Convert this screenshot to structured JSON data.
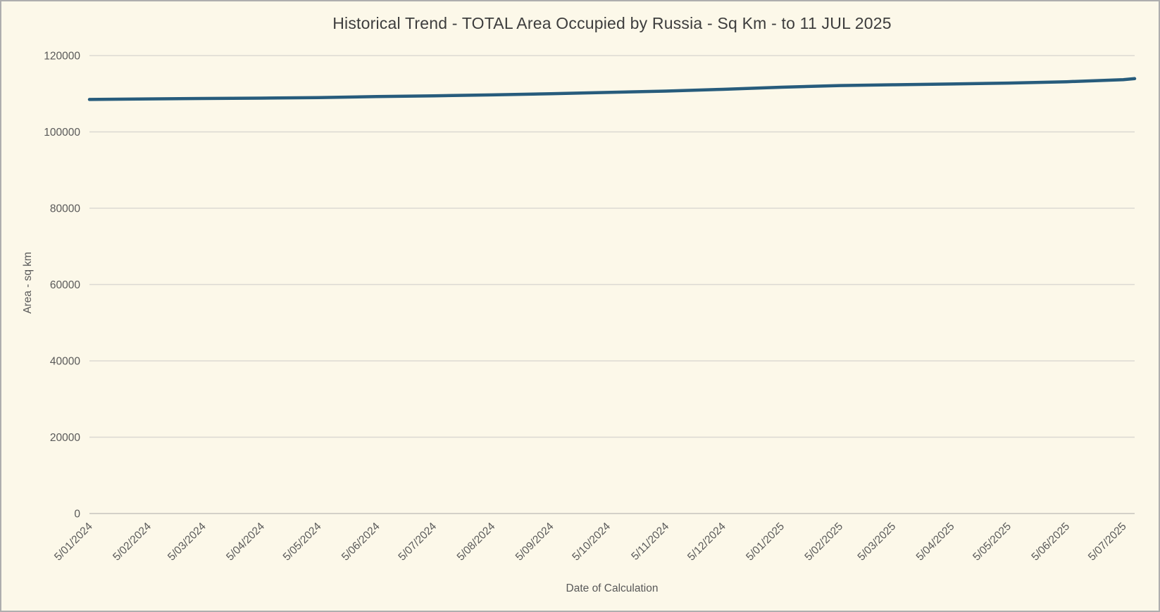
{
  "window": {
    "background_color": "#fcf8e9",
    "border_color": "#aeaeae"
  },
  "chart_data": {
    "type": "line",
    "title": "Historical Trend - TOTAL Area Occupied by Russia - Sq Km - to 11 JUL 2025",
    "xlabel": "Date of Calculation",
    "ylabel": "Area - sq km",
    "ylim": [
      0,
      120000
    ],
    "yticks": [
      0,
      20000,
      40000,
      60000,
      80000,
      100000,
      120000
    ],
    "xtick_labels": [
      "5/01/2024",
      "5/02/2024",
      "5/03/2024",
      "5/04/2024",
      "5/05/2024",
      "5/06/2024",
      "5/07/2024",
      "5/08/2024",
      "5/09/2024",
      "5/10/2024",
      "5/11/2024",
      "5/12/2024",
      "5/01/2025",
      "5/02/2025",
      "5/03/2025",
      "5/04/2025",
      "5/05/2025",
      "5/06/2025",
      "5/07/2025"
    ],
    "grid": "horizontal",
    "legend_position": "none",
    "line_color": "#275c7c",
    "line_width": 4.5,
    "gridline_color": "#dbd9d2",
    "axisline_color": "#c6c4bd",
    "tick_label_color": "#595959",
    "series": [
      {
        "name": "TOTAL Area Occupied by Russia (sq km)",
        "points": [
          {
            "date": "5/01/2024",
            "value": 108500
          },
          {
            "date": "5/02/2024",
            "value": 108650
          },
          {
            "date": "5/03/2024",
            "value": 108750
          },
          {
            "date": "5/04/2024",
            "value": 108850
          },
          {
            "date": "5/05/2024",
            "value": 109000
          },
          {
            "date": "5/06/2024",
            "value": 109250
          },
          {
            "date": "5/07/2024",
            "value": 109450
          },
          {
            "date": "5/08/2024",
            "value": 109700
          },
          {
            "date": "5/09/2024",
            "value": 110000
          },
          {
            "date": "5/10/2024",
            "value": 110350
          },
          {
            "date": "5/11/2024",
            "value": 110700
          },
          {
            "date": "5/12/2024",
            "value": 111150
          },
          {
            "date": "5/01/2025",
            "value": 111700
          },
          {
            "date": "5/02/2025",
            "value": 112150
          },
          {
            "date": "5/03/2025",
            "value": 112350
          },
          {
            "date": "5/04/2025",
            "value": 112550
          },
          {
            "date": "5/05/2025",
            "value": 112800
          },
          {
            "date": "5/06/2025",
            "value": 113150
          },
          {
            "date": "5/07/2025",
            "value": 113700
          },
          {
            "date": "11/07/2025",
            "value": 113950
          }
        ]
      }
    ]
  }
}
